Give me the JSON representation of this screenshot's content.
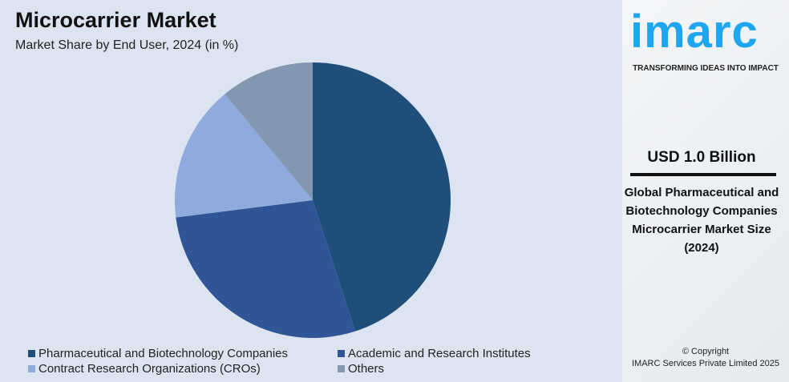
{
  "header": {
    "title": "Microcarrier Market",
    "subtitle": "Market Share by End User, 2024 (in %)"
  },
  "chart_data": {
    "type": "pie",
    "title": "Microcarrier Market",
    "subtitle": "Market Share by End User, 2024 (in %)",
    "categories": [
      "Pharmaceutical and Biotechnology Companies",
      "Academic and Research Institutes",
      "Contract Research Organizations (CROs)",
      "Others"
    ],
    "values": [
      45,
      28,
      16,
      11
    ],
    "colors": [
      "#1f4e79",
      "#2f5597",
      "#8faadc",
      "#8497b0"
    ],
    "legend": "bottom"
  },
  "sidebar": {
    "logo": "imarc",
    "tagline": "TRANSFORMING IDEAS INTO IMPACT",
    "value": "USD 1.0 Billion",
    "description": "Global Pharmaceutical and Biotechnology Companies Microcarrier Market Size (2024)",
    "copyright": "© Copyright",
    "company": "IMARC Services Private Limited 2025"
  }
}
